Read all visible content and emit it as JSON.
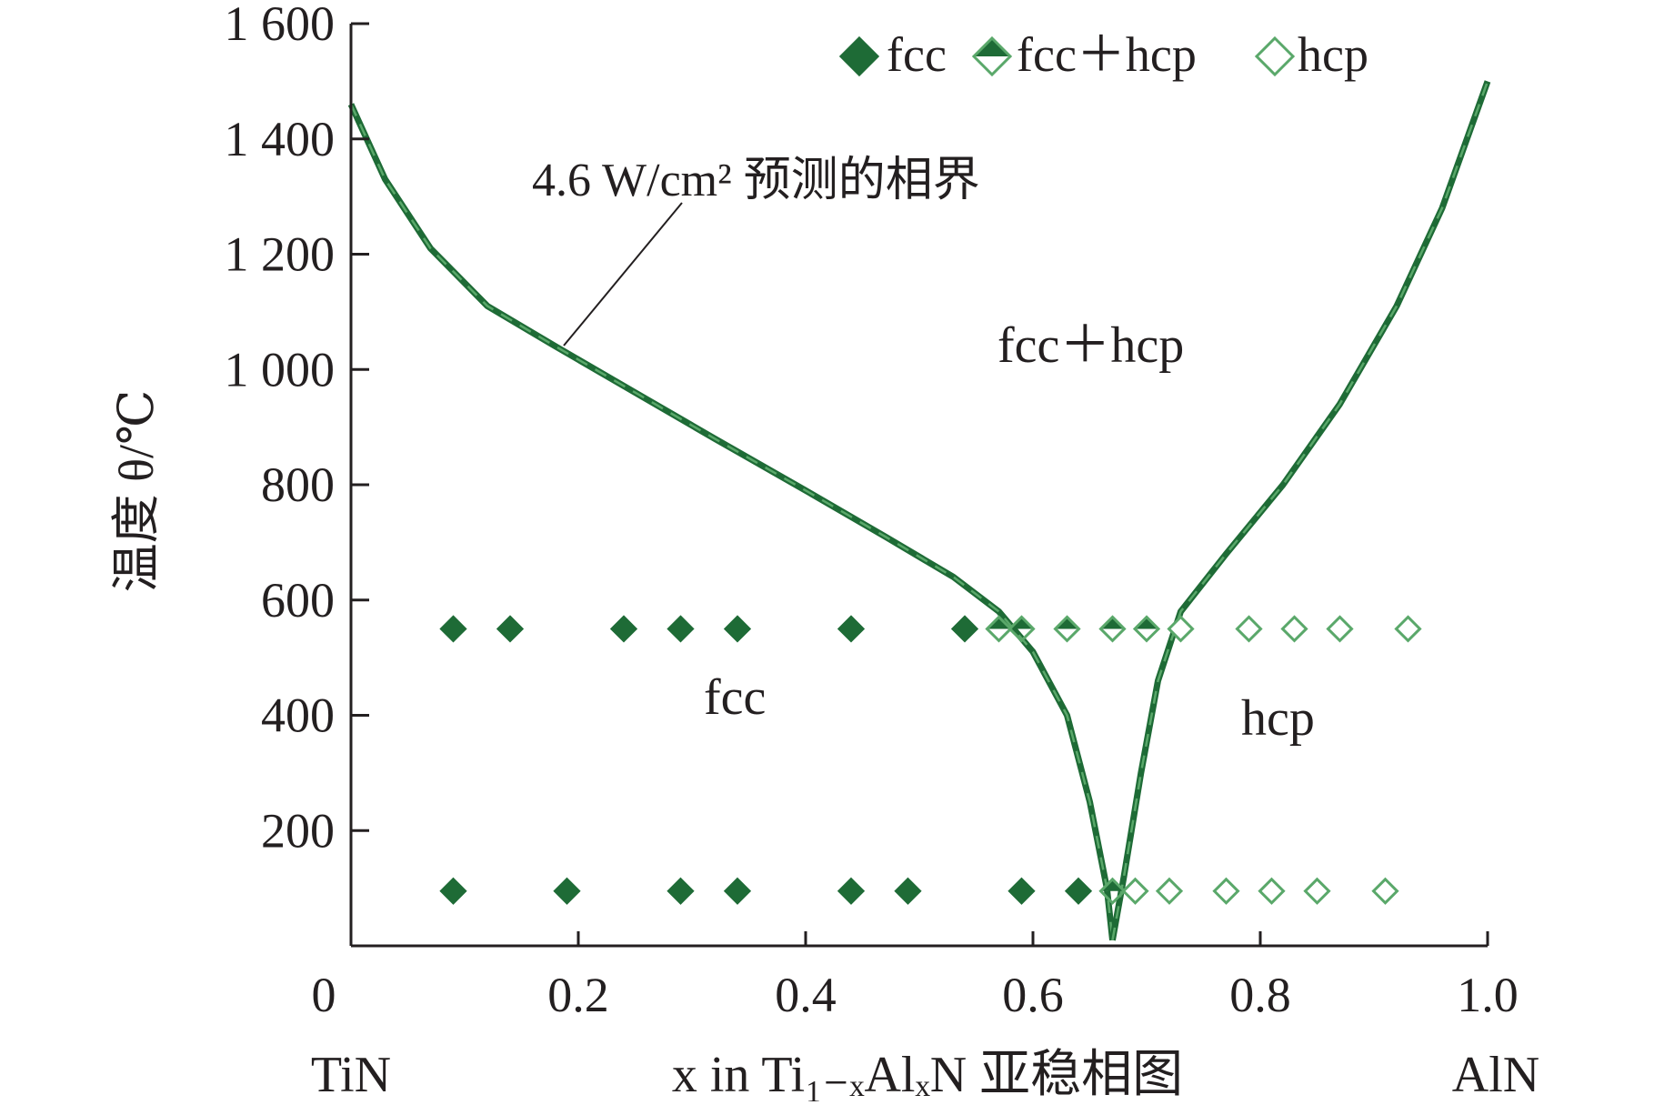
{
  "chart_data": {
    "type": "scatter",
    "title": "",
    "xlabel": "x in Ti₁₋ₓAlₓN 亚稳相图",
    "ylabel": "温度 θ/℃",
    "x_end_labels": {
      "left": "TiN",
      "right": "AlN"
    },
    "xlim": [
      0,
      1.0
    ],
    "ylim": [
      0,
      1600
    ],
    "x_ticks": [
      0,
      0.2,
      0.4,
      0.6,
      0.8,
      1.0
    ],
    "x_tick_labels": [
      "0",
      "0.2",
      "0.4",
      "0.6",
      "0.8",
      "1.0"
    ],
    "y_ticks": [
      200,
      400,
      600,
      800,
      1000,
      1200,
      1400,
      1600
    ],
    "y_tick_labels": [
      "200",
      "400",
      "600",
      "800",
      "1 000",
      "1 200",
      "1 400",
      "1 600"
    ],
    "grid": false,
    "legend_position": "top-right",
    "colors": {
      "dark": "#1e6b36",
      "light": "#5aa86a",
      "axis": "#231f20"
    },
    "series": [
      {
        "name": "fcc",
        "marker": "diamond-filled",
        "points": [
          [
            0.09,
            550
          ],
          [
            0.14,
            550
          ],
          [
            0.24,
            550
          ],
          [
            0.29,
            550
          ],
          [
            0.34,
            550
          ],
          [
            0.44,
            550
          ],
          [
            0.54,
            550
          ],
          [
            0.09,
            95
          ],
          [
            0.19,
            95
          ],
          [
            0.29,
            95
          ],
          [
            0.34,
            95
          ],
          [
            0.44,
            95
          ],
          [
            0.49,
            95
          ],
          [
            0.59,
            95
          ],
          [
            0.64,
            95
          ]
        ]
      },
      {
        "name": "fcc＋hcp",
        "marker": "diamond-half",
        "points": [
          [
            0.57,
            550
          ],
          [
            0.59,
            550
          ],
          [
            0.63,
            550
          ],
          [
            0.67,
            550
          ],
          [
            0.7,
            550
          ],
          [
            0.67,
            95
          ]
        ]
      },
      {
        "name": "hcp",
        "marker": "diamond-open",
        "points": [
          [
            0.73,
            550
          ],
          [
            0.79,
            550
          ],
          [
            0.83,
            550
          ],
          [
            0.87,
            550
          ],
          [
            0.93,
            550
          ],
          [
            0.69,
            95
          ],
          [
            0.72,
            95
          ],
          [
            0.77,
            95
          ],
          [
            0.81,
            95
          ],
          [
            0.85,
            95
          ],
          [
            0.91,
            95
          ]
        ]
      }
    ],
    "boundary_left": [
      [
        0.0,
        1460
      ],
      [
        0.03,
        1330
      ],
      [
        0.07,
        1210
      ],
      [
        0.12,
        1110
      ],
      [
        0.18,
        1040
      ],
      [
        0.25,
        960
      ],
      [
        0.32,
        880
      ],
      [
        0.4,
        790
      ],
      [
        0.47,
        710
      ],
      [
        0.53,
        640
      ],
      [
        0.57,
        580
      ],
      [
        0.6,
        510
      ],
      [
        0.63,
        400
      ],
      [
        0.65,
        250
      ],
      [
        0.665,
        100
      ],
      [
        0.67,
        10
      ]
    ],
    "boundary_right": [
      [
        0.67,
        10
      ],
      [
        0.68,
        120
      ],
      [
        0.695,
        300
      ],
      [
        0.71,
        460
      ],
      [
        0.73,
        580
      ],
      [
        0.77,
        680
      ],
      [
        0.82,
        800
      ],
      [
        0.87,
        940
      ],
      [
        0.92,
        1110
      ],
      [
        0.96,
        1280
      ],
      [
        1.0,
        1500
      ]
    ],
    "annotations": {
      "boundary_line": "4.6 W/cm² 预测的相界",
      "region_mixed": "fcc＋hcp",
      "region_fcc": "fcc",
      "region_hcp": "hcp"
    }
  }
}
